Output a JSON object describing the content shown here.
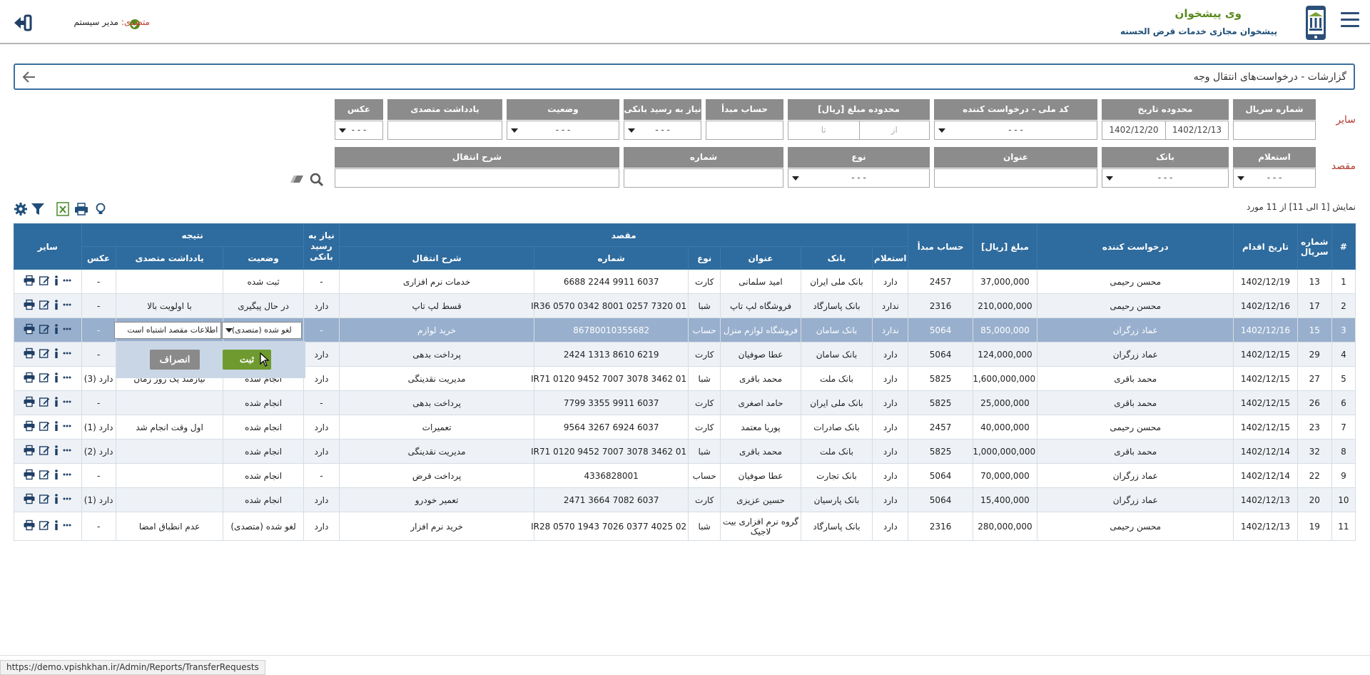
{
  "header": {
    "brand_title": "وی پیشخوان",
    "brand_subtitle": "پیشخوان مجازی خدمات قرض الحسنه",
    "user_role": "متصدی:",
    "user_name": " مدیر سیستم"
  },
  "breadcrumb": {
    "text": "گزارشات - درخواست‌های انتقال وجه"
  },
  "filters": {
    "other_label": "سایر",
    "dest_label": "مقصد",
    "row1": {
      "serial": "شماره سریال",
      "date_range": "محدوده تاریخ",
      "date_from": "1402/12/13",
      "date_to": "1402/12/20",
      "national_code": "کد ملی - درخواست کننده",
      "amount_range": "محدوده مبلغ [ریال]",
      "amount_from": "از",
      "amount_to": "تا",
      "source_account": "حساب مبدأ",
      "need_receipt": "نیاز به رسید بانکی",
      "status": "وضعیت",
      "operator_note": "یادداشت متصدی",
      "photo": "عکس",
      "empty_option": "- - -"
    },
    "row2": {
      "inquiry": "استعلام",
      "bank": "بانک",
      "title": "عنوان",
      "type": "نوع",
      "number": "شماره",
      "description": "شرح انتقال",
      "empty_option": "- - -"
    }
  },
  "toolbar": {
    "showing": "نمایش [1 الی 11] از 11 مورد"
  },
  "table": {
    "h_hash": "#",
    "h_serial": "شماره سریال",
    "h_date": "تاریخ اقدام",
    "h_requester": "درخواست کننده",
    "h_amount": "مبلغ [ریال]",
    "h_source": "حساب مبدأ",
    "h_dest": "مقصد",
    "h_inquiry": "استعلام",
    "h_bank": "بانک",
    "h_title": "عنوان",
    "h_type": "نوع",
    "h_number": "شماره",
    "h_desc": "شرح انتقال",
    "h_need": "نیاز به رسید بانکی",
    "h_result": "نتیجه",
    "h_status": "وضعیت",
    "h_note": "یادداشت متصدی",
    "h_photo": "عکس",
    "h_other": "سایر",
    "rows": [
      {
        "n": "1",
        "serial": "13",
        "date": "1402/12/19",
        "requester": "محسن رحیمی",
        "amount": "37,000,000",
        "source": "2457",
        "inquiry": "دارد",
        "bank": "بانک ملی ایران",
        "title": "امید سلمانی",
        "type": "کارت",
        "number": "6037 9911 2244 6688",
        "desc": "خدمات نرم افزاری",
        "need": "-",
        "status": "ثبت شده",
        "note": "",
        "photo": "-"
      },
      {
        "n": "2",
        "serial": "17",
        "date": "1402/12/16",
        "requester": "محسن رحیمی",
        "amount": "210,000,000",
        "source": "2316",
        "inquiry": "ندارد",
        "bank": "بانک پاسارگاد",
        "title": "فروشگاه لپ تاپ",
        "type": "شبا",
        "number": "IR36 0570 0342 8001 0257 7320 01",
        "desc": "قسط لپ تاپ",
        "need": "دارد",
        "status": "در حال پیگیری",
        "note": "با اولویت بالا",
        "photo": "-"
      },
      {
        "n": "3",
        "serial": "15",
        "date": "1402/12/16",
        "requester": "عماد زرگران",
        "amount": "85,000,000",
        "source": "5064",
        "inquiry": "ندارد",
        "bank": "بانک سامان",
        "title": "فروشگاه لوازم منزل",
        "type": "حساب",
        "number": "86780010355682",
        "desc": "خرید لوازم",
        "need": "-",
        "status": "لغو شده (متصدی)",
        "note": "اطلاعات مقصد اشتباه است",
        "photo": "-"
      },
      {
        "n": "4",
        "serial": "29",
        "date": "1402/12/15",
        "requester": "عماد زرگران",
        "amount": "124,000,000",
        "source": "5064",
        "inquiry": "دارد",
        "bank": "بانک سامان",
        "title": "عطا صوفیان",
        "type": "کارت",
        "number": "6219 8610 1313 2424",
        "desc": "پرداخت بدهی",
        "need": "دارد",
        "status": "",
        "note": "",
        "photo": "-"
      },
      {
        "n": "5",
        "serial": "27",
        "date": "1402/12/15",
        "requester": "محمد باقری",
        "amount": "1,600,000,000",
        "source": "5825",
        "inquiry": "دارد",
        "bank": "بانک ملت",
        "title": "محمد باقری",
        "type": "شبا",
        "number": "IR71 0120 9452 7007 3078 3462 01",
        "desc": "مدیریت نقدینگی",
        "need": "دارد",
        "status": "انجام شده",
        "note": "نیازمند یک روز زمان",
        "photo": "دارد (3)"
      },
      {
        "n": "6",
        "serial": "26",
        "date": "1402/12/15",
        "requester": "محمد باقری",
        "amount": "25,000,000",
        "source": "5825",
        "inquiry": "دارد",
        "bank": "بانک ملی ایران",
        "title": "حامد اصغری",
        "type": "کارت",
        "number": "6037 9911 3355 7799",
        "desc": "پرداخت بدهی",
        "need": "-",
        "status": "انجام شده",
        "note": "",
        "photo": "-"
      },
      {
        "n": "7",
        "serial": "23",
        "date": "1402/12/15",
        "requester": "محسن رحیمی",
        "amount": "40,000,000",
        "source": "2457",
        "inquiry": "دارد",
        "bank": "بانک صادرات",
        "title": "پوریا معتمد",
        "type": "کارت",
        "number": "6037 6924 3267 9564",
        "desc": "تعمیرات",
        "need": "دارد",
        "status": "انجام شده",
        "note": "اول وقت انجام شد",
        "photo": "دارد (1)"
      },
      {
        "n": "8",
        "serial": "32",
        "date": "1402/12/14",
        "requester": "محمد باقری",
        "amount": "1,000,000,000",
        "source": "5825",
        "inquiry": "دارد",
        "bank": "بانک ملت",
        "title": "محمد باقری",
        "type": "شبا",
        "number": "IR71 0120 9452 7007 3078 3462 01",
        "desc": "مدیریت نقدینگی",
        "need": "دارد",
        "status": "انجام شده",
        "note": "",
        "photo": "دارد (2)"
      },
      {
        "n": "9",
        "serial": "22",
        "date": "1402/12/14",
        "requester": "عماد زرگران",
        "amount": "70,000,000",
        "source": "5064",
        "inquiry": "دارد",
        "bank": "بانک تجارت",
        "title": "عطا صوفیان",
        "type": "حساب",
        "number": "4336828001",
        "desc": "پرداخت قرض",
        "need": "-",
        "status": "انجام شده",
        "note": "",
        "photo": "-"
      },
      {
        "n": "10",
        "serial": "20",
        "date": "1402/12/13",
        "requester": "عماد زرگران",
        "amount": "15,400,000",
        "source": "5064",
        "inquiry": "دارد",
        "bank": "بانک پارسیان",
        "title": "حسین عزیزی",
        "type": "کارت",
        "number": "6037 7082 3664 2471",
        "desc": "تعمیر خودرو",
        "need": "دارد",
        "status": "انجام شده",
        "note": "",
        "photo": "دارد (1)"
      },
      {
        "n": "11",
        "serial": "19",
        "date": "1402/12/13",
        "requester": "محسن رحیمی",
        "amount": "280,000,000",
        "source": "2316",
        "inquiry": "دارد",
        "bank": "بانک پاسارگاد",
        "title": "گروه نرم افزاری بیت لاجیک",
        "type": "شبا",
        "number": "IR28 0570 1943 7026 0377 4025 02",
        "desc": "خرید نرم افزار",
        "need": "دارد",
        "status": "لغو شده (متصدی)",
        "note": "عدم انطباق امضا",
        "photo": "-"
      }
    ]
  },
  "popup": {
    "save": "ثبت",
    "cancel": "انصراف"
  },
  "statusbar": {
    "url": "https://demo.vpishkhan.ir/Admin/Reports/TransferRequests"
  }
}
